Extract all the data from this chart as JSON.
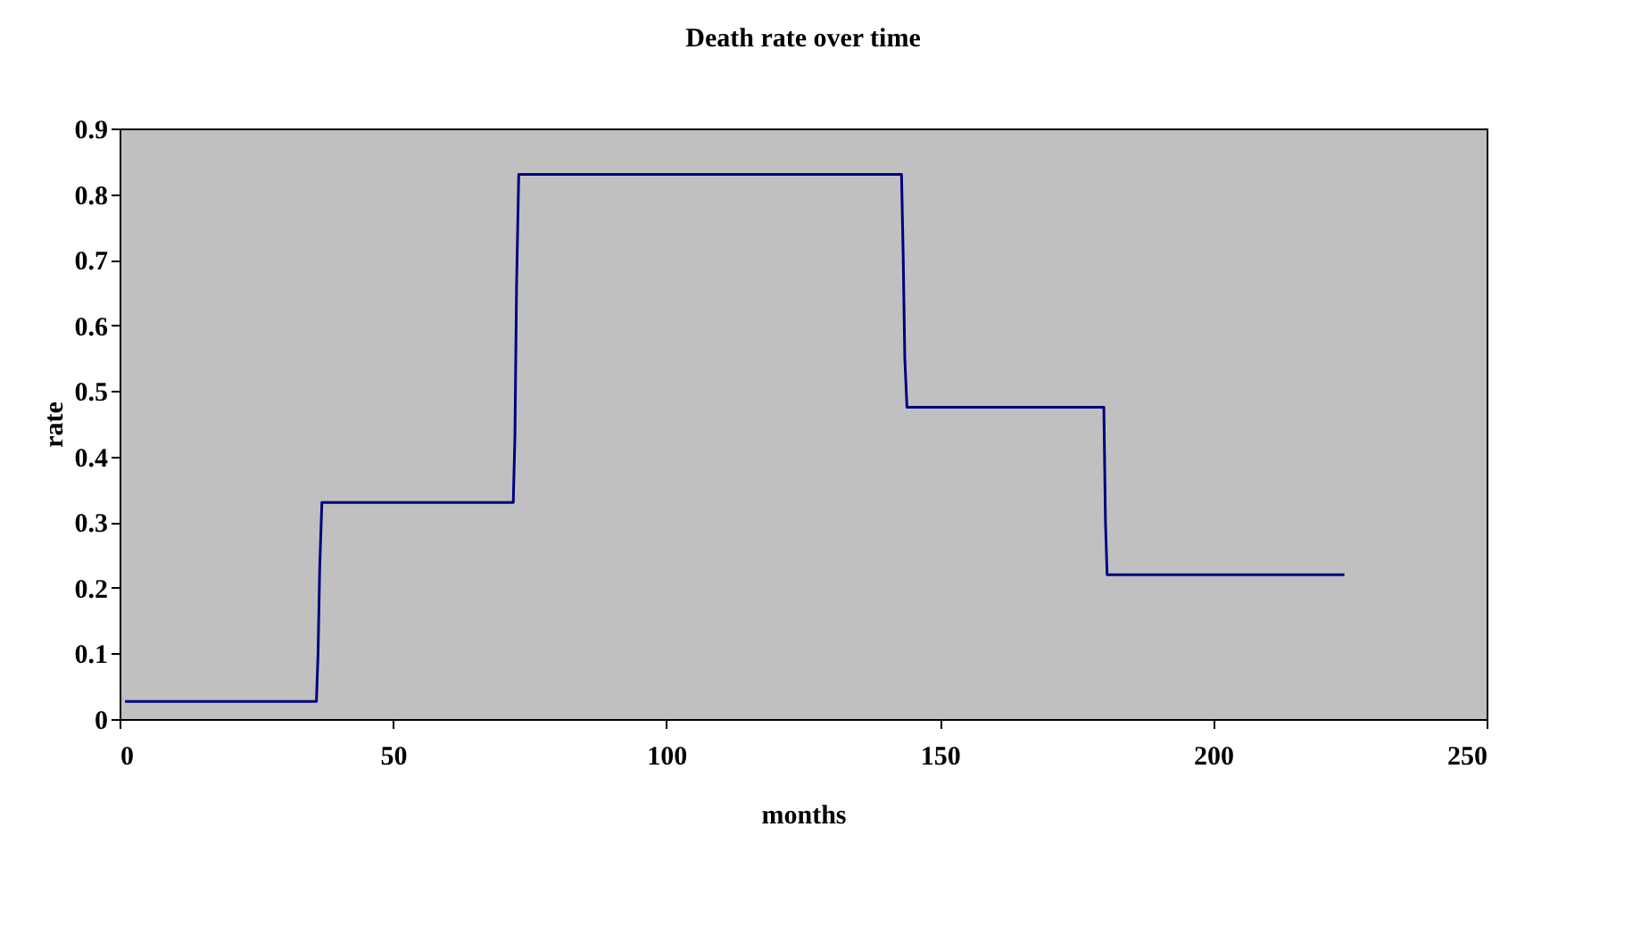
{
  "chart_data": {
    "type": "line",
    "title": "Death rate over time",
    "xlabel": "months",
    "ylabel": "rate",
    "x": [
      1,
      36,
      36.3,
      36.6,
      37,
      72,
      72.3,
      72.6,
      73,
      143,
      143.3,
      143.6,
      144,
      180,
      180.3,
      180.6,
      224
    ],
    "series": [
      {
        "color": "#000080",
        "values": [
          0.027,
          0.027,
          0.1,
          0.23,
          0.33,
          0.33,
          0.43,
          0.66,
          0.83,
          0.83,
          0.71,
          0.55,
          0.475,
          0.475,
          0.3,
          0.22,
          0.22
        ]
      }
    ],
    "xlim": [
      0,
      250
    ],
    "xticks": [
      0,
      50,
      100,
      150,
      200,
      250
    ],
    "ylim": [
      0,
      0.9
    ],
    "yticks": [
      0,
      0.1,
      0.2,
      0.3,
      0.4,
      0.5,
      0.6,
      0.7,
      0.8,
      0.9
    ],
    "grid": false,
    "legend": false,
    "marker": "none",
    "line_style": "solid"
  }
}
